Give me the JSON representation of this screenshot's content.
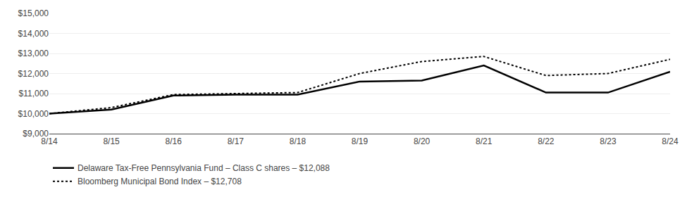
{
  "chart_data": {
    "type": "line",
    "categories": [
      "8/14",
      "8/15",
      "8/16",
      "8/17",
      "8/18",
      "8/19",
      "8/20",
      "8/21",
      "8/22",
      "8/23",
      "8/24"
    ],
    "series": [
      {
        "name": "Delaware Tax-Free Pennsylvania Fund – Class C shares – $12,088",
        "color": "#000000",
        "line_style": "solid",
        "values": [
          10000,
          10200,
          10900,
          10950,
          10950,
          11600,
          11650,
          12400,
          11050,
          11050,
          12088
        ]
      },
      {
        "name": "Bloomberg Municipal Bond Index – $12,708",
        "color": "#000000",
        "line_style": "dotted",
        "values": [
          10000,
          10300,
          10950,
          11000,
          11050,
          12000,
          12600,
          12850,
          11900,
          12000,
          12708
        ]
      }
    ],
    "ylim": [
      9000,
      15000
    ],
    "yticks": [
      {
        "value": 9000,
        "label": "$9,000"
      },
      {
        "value": 10000,
        "label": "$10,000"
      },
      {
        "value": 11000,
        "label": "$11,000"
      },
      {
        "value": 12000,
        "label": "$12,000"
      },
      {
        "value": 13000,
        "label": "$13,000"
      },
      {
        "value": 14000,
        "label": "$14,000"
      },
      {
        "value": 15000,
        "label": "$15,000"
      }
    ],
    "grid": true,
    "legend": "lower left"
  }
}
